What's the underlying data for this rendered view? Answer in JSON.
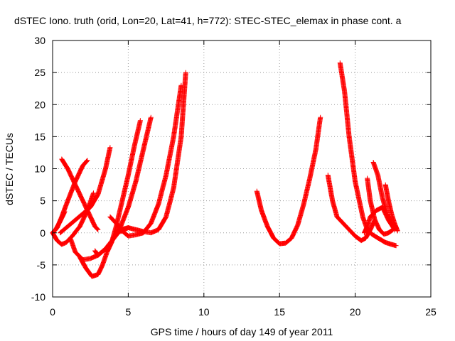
{
  "chart_data": {
    "type": "scatter",
    "title": "dSTEC Iono. truth (orid, Lon=20, Lat=41, h=772): STEC-STEC_elemax in phase cont. a",
    "xlabel": "GPS time / hours of day 149 of year 2011",
    "ylabel": "dSTEC  / TECUs",
    "xlim": [
      0,
      25
    ],
    "ylim": [
      -10,
      30
    ],
    "xticks": [
      "0",
      "5",
      "10",
      "15",
      "20",
      "25"
    ],
    "yticks": [
      "-10",
      "-5",
      "0",
      "5",
      "10",
      "15",
      "20",
      "25",
      "30"
    ],
    "grid": true,
    "marker": "plus",
    "color": "#ff0000",
    "series": [
      {
        "x": [
          0.0,
          0.3,
          0.6,
          1.0,
          1.5,
          2.0,
          2.3
        ],
        "y": [
          0.0,
          0.8,
          2.5,
          5.0,
          8.0,
          10.5,
          11.3
        ]
      },
      {
        "x": [
          0.0,
          0.2,
          0.5,
          0.8
        ],
        "y": [
          0.0,
          0.5,
          1.8,
          3.3
        ]
      },
      {
        "x": [
          0.6,
          1.0,
          1.5,
          2.0,
          2.5,
          2.8,
          3.0
        ],
        "y": [
          11.5,
          10.0,
          7.5,
          5.0,
          2.5,
          1.0,
          0.5
        ]
      },
      {
        "x": [
          0.0,
          0.3,
          0.6,
          0.9,
          1.3,
          1.8,
          2.3,
          2.7
        ],
        "y": [
          0.0,
          -1.2,
          -1.8,
          -1.5,
          -0.5,
          1.0,
          3.5,
          6.2
        ]
      },
      {
        "x": [
          0.5,
          1.0,
          1.5,
          2.0,
          2.5,
          3.0,
          3.5,
          3.8
        ],
        "y": [
          0.0,
          1.0,
          2.0,
          3.0,
          4.0,
          6.0,
          10.0,
          13.3
        ]
      },
      {
        "x": [
          1.8,
          2.2,
          2.6,
          3.0,
          3.3,
          3.6,
          3.9,
          4.2,
          4.6,
          5.0,
          5.4,
          5.8
        ],
        "y": [
          -3.8,
          -5.5,
          -6.8,
          -6.5,
          -5.0,
          -3.0,
          -1.5,
          1.0,
          5.0,
          9.0,
          13.5,
          17.5
        ]
      },
      {
        "x": [
          2.8,
          3.0,
          3.5,
          4.0,
          4.5,
          5.0,
          5.5,
          6.0,
          6.5
        ],
        "y": [
          -2.8,
          -3.5,
          -2.5,
          -1.0,
          1.0,
          4.0,
          8.0,
          13.0,
          18.0
        ]
      },
      {
        "x": [
          1.2,
          1.5,
          2.0,
          2.5,
          3.0,
          3.5,
          4.0,
          4.5,
          5.0
        ],
        "y": [
          -1.0,
          -3.0,
          -4.2,
          -4.0,
          -3.5,
          -2.5,
          -1.0,
          0.5,
          0.8
        ]
      },
      {
        "x": [
          3.8,
          4.2,
          4.6,
          5.0,
          5.5,
          6.0,
          6.5,
          7.0,
          7.5,
          8.0,
          8.5
        ],
        "y": [
          2.5,
          1.5,
          0.3,
          -0.5,
          -0.3,
          0.0,
          1.5,
          4.5,
          9.0,
          15.0,
          23.0
        ]
      },
      {
        "x": [
          4.5,
          5.0,
          5.5,
          6.0,
          6.5,
          7.0,
          7.5,
          8.0,
          8.5,
          8.8
        ],
        "y": [
          0.2,
          0.8,
          0.5,
          0.2,
          0.0,
          0.5,
          2.5,
          7.0,
          15.0,
          25.0
        ]
      },
      {
        "x": [
          13.5,
          13.8,
          14.2,
          14.6,
          15.0,
          15.4,
          15.8,
          16.2,
          16.6,
          17.0,
          17.4,
          17.7
        ],
        "y": [
          6.5,
          3.5,
          1.0,
          -0.8,
          -1.7,
          -1.6,
          -0.8,
          1.2,
          4.5,
          8.5,
          13.0,
          18.0
        ]
      },
      {
        "x": [
          18.2,
          18.5,
          18.8,
          19.2,
          19.6,
          20.0,
          20.4,
          20.7,
          21.0,
          21.3
        ],
        "y": [
          9.0,
          5.0,
          2.5,
          1.5,
          0.5,
          -0.5,
          -1.2,
          -0.8,
          0.5,
          2.0
        ]
      },
      {
        "x": [
          19.0,
          19.3,
          19.6,
          20.0,
          20.5,
          20.8,
          21.1,
          21.5,
          22.0,
          22.4,
          22.7
        ],
        "y": [
          26.5,
          22.0,
          15.0,
          8.0,
          2.5,
          0.5,
          -0.2,
          -0.8,
          -1.5,
          -1.8,
          -2.0
        ]
      },
      {
        "x": [
          20.8,
          21.0,
          21.3,
          21.6,
          21.9,
          22.2,
          22.5
        ],
        "y": [
          8.5,
          5.0,
          2.0,
          0.5,
          -0.2,
          0.0,
          0.5
        ]
      },
      {
        "x": [
          21.2,
          21.5,
          21.8,
          22.1,
          22.4,
          22.7
        ],
        "y": [
          11.0,
          9.0,
          5.5,
          3.0,
          1.5,
          0.8
        ]
      },
      {
        "x": [
          22.0,
          22.2,
          22.4,
          22.6,
          22.8
        ],
        "y": [
          7.5,
          5.0,
          3.0,
          1.5,
          0.3
        ]
      },
      {
        "x": [
          20.6,
          20.8,
          21.0,
          21.4,
          21.8,
          22.2,
          22.6
        ],
        "y": [
          0.0,
          1.0,
          2.5,
          3.5,
          4.0,
          2.0,
          0.5
        ]
      }
    ]
  }
}
